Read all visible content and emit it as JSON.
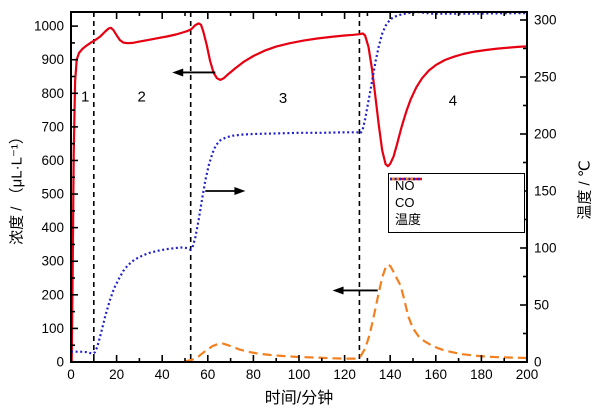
{
  "chart_data": {
    "type": "line",
    "axes": {
      "x": {
        "title": "时间/分钟",
        "range": [
          0,
          200
        ],
        "major_ticks": [
          0,
          20,
          40,
          60,
          80,
          100,
          120,
          140,
          160,
          180,
          200
        ],
        "minor_step": 10
      },
      "left": {
        "title": "浓度 / （μL·L⁻¹）",
        "range": [
          0,
          1042
        ],
        "major_ticks": [
          0,
          100,
          200,
          300,
          400,
          500,
          600,
          700,
          800,
          900,
          1000
        ],
        "minor_step": 50
      },
      "right": {
        "title": "温度 / ℃",
        "range": [
          0,
          307
        ],
        "major_ticks": [
          0,
          50,
          100,
          150,
          200,
          250,
          300
        ],
        "minor_step": 25
      }
    },
    "grid": false,
    "legend_position": "inside-right",
    "series": [
      {
        "name": "NO",
        "axis": "left",
        "color": "#e60012",
        "line": "solid",
        "points": [
          [
            0.3,
            0
          ],
          [
            0.8,
            310
          ],
          [
            1.2,
            620
          ],
          [
            1.8,
            835
          ],
          [
            2.5,
            900
          ],
          [
            3.5,
            920
          ],
          [
            5,
            932
          ],
          [
            7,
            943
          ],
          [
            9,
            952
          ],
          [
            11,
            960
          ],
          [
            13,
            970
          ],
          [
            15,
            984
          ],
          [
            16.5,
            993
          ],
          [
            17.5,
            995
          ],
          [
            18.5,
            989
          ],
          [
            20,
            973
          ],
          [
            21.5,
            958
          ],
          [
            23,
            951
          ],
          [
            25,
            949
          ],
          [
            27,
            950
          ],
          [
            30,
            954
          ],
          [
            34,
            959
          ],
          [
            38,
            964
          ],
          [
            42,
            969
          ],
          [
            46,
            975
          ],
          [
            49,
            981
          ],
          [
            51,
            985
          ],
          [
            53,
            992
          ],
          [
            54.5,
            1003
          ],
          [
            56,
            1008
          ],
          [
            57,
            1004
          ],
          [
            58,
            985
          ],
          [
            59.5,
            944
          ],
          [
            61,
            896
          ],
          [
            62.5,
            862
          ],
          [
            64,
            845
          ],
          [
            65.5,
            840
          ],
          [
            67,
            845
          ],
          [
            69,
            857
          ],
          [
            72,
            874
          ],
          [
            76,
            895
          ],
          [
            80,
            911
          ],
          [
            85,
            927
          ],
          [
            90,
            939
          ],
          [
            96,
            949
          ],
          [
            102,
            957
          ],
          [
            108,
            963
          ],
          [
            114,
            968
          ],
          [
            120,
            972
          ],
          [
            124,
            974
          ],
          [
            126.5,
            976
          ],
          [
            128,
            978
          ],
          [
            129,
            972
          ],
          [
            130.5,
            938
          ],
          [
            132,
            872
          ],
          [
            133.5,
            790
          ],
          [
            135,
            705
          ],
          [
            136.5,
            630
          ],
          [
            138,
            589
          ],
          [
            139,
            583
          ],
          [
            140,
            590
          ],
          [
            141.5,
            612
          ],
          [
            143,
            648
          ],
          [
            145,
            700
          ],
          [
            147,
            745
          ],
          [
            149,
            782
          ],
          [
            151.5,
            818
          ],
          [
            154,
            845
          ],
          [
            157,
            868
          ],
          [
            160,
            884
          ],
          [
            164,
            899
          ],
          [
            168,
            909
          ],
          [
            172,
            917
          ],
          [
            177,
            924
          ],
          [
            182,
            929
          ],
          [
            187,
            933
          ],
          [
            192,
            936
          ],
          [
            196,
            938
          ],
          [
            200,
            940
          ]
        ]
      },
      {
        "name": "CO",
        "axis": "left",
        "color": "#f28020",
        "line": "dashed",
        "points": [
          [
            50,
            2
          ],
          [
            53,
            6
          ],
          [
            56,
            17
          ],
          [
            59,
            33
          ],
          [
            62,
            47
          ],
          [
            64.5,
            54
          ],
          [
            66.5,
            55
          ],
          [
            68.5,
            51
          ],
          [
            71,
            45
          ],
          [
            74,
            37
          ],
          [
            78,
            30
          ],
          [
            82,
            25
          ],
          [
            87,
            21
          ],
          [
            93,
            18
          ],
          [
            100,
            15
          ],
          [
            108,
            13
          ],
          [
            115,
            11
          ],
          [
            121,
            10
          ],
          [
            125,
            10
          ],
          [
            127,
            17
          ],
          [
            129,
            40
          ],
          [
            131,
            82
          ],
          [
            133,
            142
          ],
          [
            135,
            207
          ],
          [
            136.5,
            252
          ],
          [
            138,
            281
          ],
          [
            139,
            290
          ],
          [
            140,
            286
          ],
          [
            141.5,
            268
          ],
          [
            143,
            248
          ],
          [
            144.5,
            228
          ],
          [
            146,
            190
          ],
          [
            148,
            135
          ],
          [
            150,
            100
          ],
          [
            152.5,
            76
          ],
          [
            155,
            62
          ],
          [
            158,
            50
          ],
          [
            161,
            41
          ],
          [
            164,
            34
          ],
          [
            168,
            28
          ],
          [
            172,
            23
          ],
          [
            177,
            19
          ],
          [
            182,
            16
          ],
          [
            188,
            14
          ],
          [
            194,
            13
          ],
          [
            200,
            12
          ]
        ]
      },
      {
        "name": "温度",
        "axis": "right",
        "color": "#2222cc",
        "line": "dotted",
        "points": [
          [
            0,
            9
          ],
          [
            4,
            9
          ],
          [
            7,
            8.7
          ],
          [
            8.5,
            7.8
          ],
          [
            9.5,
            7.5
          ],
          [
            10.5,
            8.5
          ],
          [
            11.5,
            13
          ],
          [
            13,
            24
          ],
          [
            15,
            40
          ],
          [
            17,
            54
          ],
          [
            19,
            65
          ],
          [
            21,
            73
          ],
          [
            23,
            80
          ],
          [
            25,
            85
          ],
          [
            28,
            90
          ],
          [
            31,
            93
          ],
          [
            34,
            95.5
          ],
          [
            38,
            97.5
          ],
          [
            42,
            99
          ],
          [
            46,
            100
          ],
          [
            49,
            100.5
          ],
          [
            51,
            99.8
          ],
          [
            52.3,
            98.6
          ],
          [
            53.2,
            100
          ],
          [
            54.5,
            109
          ],
          [
            56,
            125
          ],
          [
            57.5,
            143
          ],
          [
            59,
            160
          ],
          [
            60.5,
            173
          ],
          [
            62,
            183
          ],
          [
            63.5,
            190
          ],
          [
            65.5,
            194.5
          ],
          [
            68,
            197
          ],
          [
            71,
            198.5
          ],
          [
            75,
            199.5
          ],
          [
            80,
            200
          ],
          [
            90,
            200.5
          ],
          [
            100,
            201
          ],
          [
            110,
            201
          ],
          [
            120,
            201.5
          ],
          [
            125.5,
            201.5
          ],
          [
            126.8,
            200.3
          ],
          [
            127.8,
            203
          ],
          [
            129,
            213
          ],
          [
            130.5,
            229
          ],
          [
            132,
            246
          ],
          [
            133.5,
            263
          ],
          [
            135,
            277
          ],
          [
            136.5,
            288
          ],
          [
            138,
            295
          ],
          [
            140,
            300.5
          ],
          [
            142,
            303
          ],
          [
            145,
            305
          ],
          [
            149,
            306.5
          ],
          [
            152,
            307
          ],
          [
            155,
            306.3
          ],
          [
            158,
            305.6
          ],
          [
            165,
            305.5
          ],
          [
            175,
            305.6
          ],
          [
            185,
            305.8
          ],
          [
            200,
            306
          ]
        ]
      }
    ],
    "annotations": {
      "vlines": {
        "t": [
          10,
          52.5,
          126.5
        ],
        "style": "dashed",
        "color": "#000000"
      },
      "regions": [
        {
          "label": "1",
          "t": 6.2,
          "conc": 790
        },
        {
          "label": "2",
          "t": 31,
          "conc": 790
        },
        {
          "label": "3",
          "t": 93,
          "conc": 786
        },
        {
          "label": "4",
          "t": 167.5,
          "conc": 778
        }
      ],
      "arrows": [
        {
          "name": "no-to-left-axis-arrow",
          "t_tail": 63.3,
          "t_tip": 44.4,
          "conc": 862
        },
        {
          "name": "temp-to-right-axis-arrow",
          "t_tail": 58.9,
          "t_tip": 76.5,
          "conc": 509
        },
        {
          "name": "co-to-left-axis-arrow",
          "t_tail": 134.5,
          "t_tip": 114.7,
          "conc": 213
        }
      ]
    }
  }
}
